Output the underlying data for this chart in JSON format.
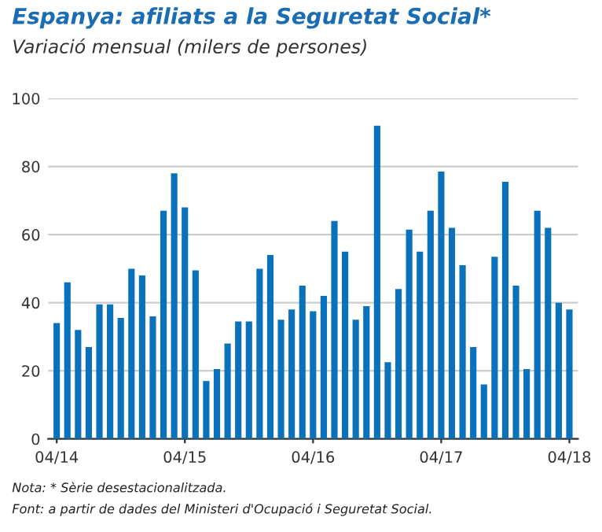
{
  "chart_data": {
    "type": "bar",
    "title": "Espanya: afiliats a la Seguretat Social*",
    "subtitle": "Variació mensual (milers de persones)",
    "categories": [
      "04/14",
      null,
      null,
      null,
      null,
      null,
      null,
      null,
      null,
      null,
      null,
      null,
      "04/15",
      null,
      null,
      null,
      null,
      null,
      null,
      null,
      null,
      null,
      null,
      null,
      "04/16",
      null,
      null,
      null,
      null,
      null,
      null,
      null,
      null,
      null,
      null,
      null,
      "04/17",
      null,
      null,
      null,
      null,
      null,
      null,
      null,
      null,
      null,
      null,
      null,
      "04/18"
    ],
    "values": [
      34,
      46,
      32,
      27,
      39.5,
      39.5,
      35.5,
      50,
      48,
      36,
      67,
      78,
      68,
      49.5,
      17,
      20.5,
      28,
      34.5,
      34.5,
      50,
      54,
      35,
      38,
      45,
      37.5,
      42,
      64,
      55,
      35,
      39,
      92,
      22.5,
      44,
      61.5,
      55,
      67,
      78.5,
      62,
      51,
      27,
      16,
      53.5,
      75.5,
      45,
      20.5,
      67,
      62,
      40,
      38
    ],
    "color": "#0a72ba",
    "ylim": [
      0,
      100
    ],
    "yticks": [
      0,
      20,
      40,
      60,
      80,
      100
    ],
    "grid": "y",
    "annotations": [
      "Nota: * Sèrie desestacionalitzada.",
      "Font: a partir de dades del Ministeri d'Ocupació i Seguretat Social."
    ]
  }
}
